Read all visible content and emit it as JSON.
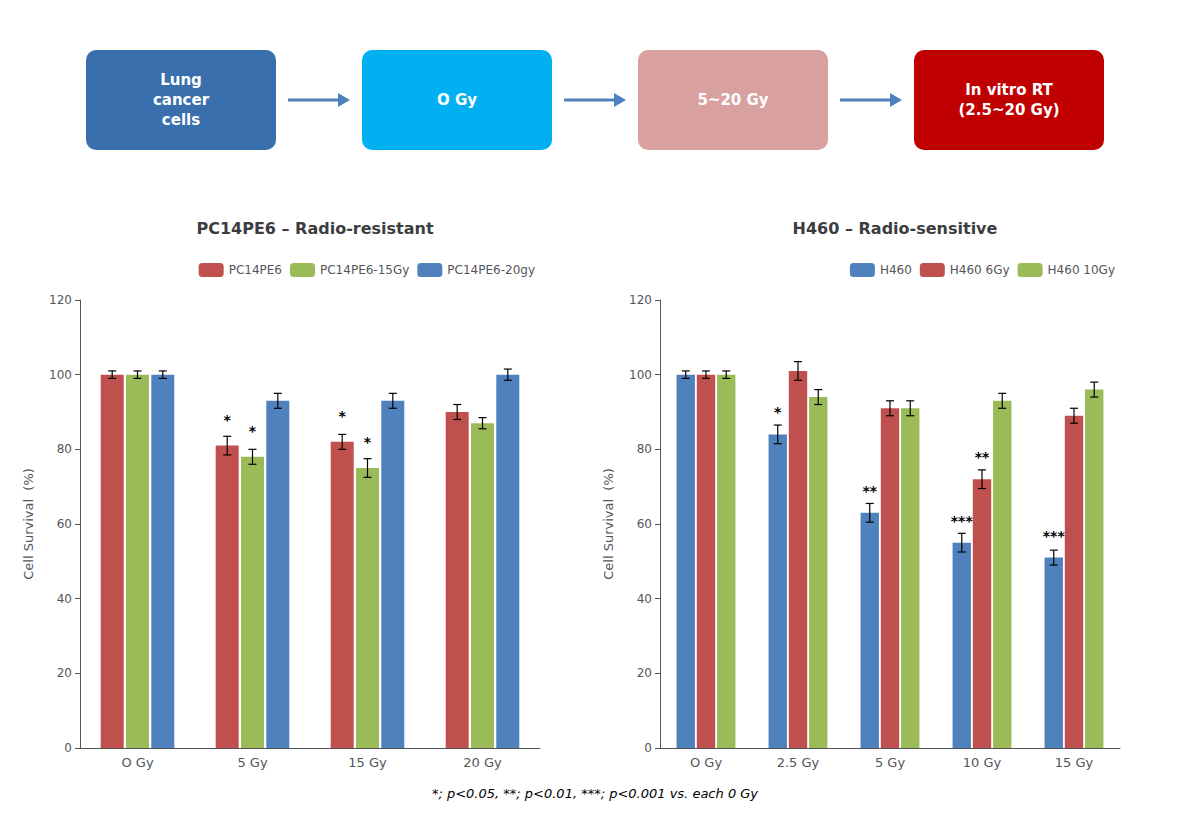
{
  "chart_data": [
    {
      "type": "diagram",
      "annotations": [
        "Lung\ncancer\ncells",
        "O Gy",
        "5~20 Gy",
        "In vitro RT\n(2.5~20 Gy)"
      ],
      "colors": [
        "#3a6fad",
        "#00b0f0",
        "#d9a0a0",
        "#c00000"
      ]
    },
    {
      "type": "bar",
      "title": "PC14PE6 – Radio-resistant",
      "categories": [
        "O Gy",
        "5 Gy",
        "15 Gy",
        "20 Gy"
      ],
      "series": [
        {
          "name": "PC14PE6",
          "color": "#c0504d",
          "values": [
            100,
            81,
            82,
            90
          ],
          "errors": [
            1.0,
            2.5,
            2.0,
            2.0
          ]
        },
        {
          "name": "PC14PE6-15Gy",
          "color": "#9bbb59",
          "values": [
            100,
            78,
            75,
            87
          ],
          "errors": [
            1.0,
            2.0,
            2.5,
            1.5
          ]
        },
        {
          "name": "PC14PE6-20gy",
          "color": "#4f81bd",
          "values": [
            100,
            93,
            93,
            100
          ],
          "errors": [
            1.0,
            2.0,
            2.0,
            1.5
          ]
        }
      ],
      "annotations": [
        {
          "text": "*",
          "category": "5 Gy",
          "series": "PC14PE6",
          "y": 86
        },
        {
          "text": "*",
          "category": "5 Gy",
          "series": "PC14PE6-15Gy",
          "y": 83
        },
        {
          "text": "*",
          "category": "15 Gy",
          "series": "PC14PE6",
          "y": 87
        },
        {
          "text": "*",
          "category": "15 Gy",
          "series": "PC14PE6-15Gy",
          "y": 80
        }
      ],
      "ylim": [
        0,
        120
      ],
      "yticks": [
        0,
        20,
        40,
        60,
        80,
        100,
        120
      ],
      "ylabel": "Cell Survival  (%)",
      "legend": "upper right",
      "grid": false
    },
    {
      "type": "bar",
      "title": "H460 – Radio-sensitive",
      "categories": [
        "O Gy",
        "2.5 Gy",
        "5 Gy",
        "10 Gy",
        "15 Gy"
      ],
      "series": [
        {
          "name": "H460",
          "color": "#4f81bd",
          "values": [
            100,
            84,
            63,
            55,
            51
          ],
          "errors": [
            1.0,
            2.5,
            2.5,
            2.5,
            2.0
          ]
        },
        {
          "name": "H460 6Gy",
          "color": "#c0504d",
          "values": [
            100,
            101,
            91,
            72,
            89
          ],
          "errors": [
            1.0,
            2.5,
            2.0,
            2.5,
            2.0
          ]
        },
        {
          "name": "H460 10Gy",
          "color": "#9bbb59",
          "values": [
            100,
            94,
            91,
            93,
            96
          ],
          "errors": [
            1.0,
            2.0,
            2.0,
            2.0,
            2.0
          ]
        }
      ],
      "annotations": [
        {
          "text": "*",
          "category": "2.5 Gy",
          "series": "H460",
          "y": 88
        },
        {
          "text": "**",
          "category": "5 Gy",
          "series": "H460",
          "y": 67
        },
        {
          "text": "***",
          "category": "10 Gy",
          "series": "H460",
          "y": 59
        },
        {
          "text": "**",
          "category": "10 Gy",
          "series": "H460 6Gy",
          "y": 76
        },
        {
          "text": "***",
          "category": "15 Gy",
          "series": "H460",
          "y": 55
        }
      ],
      "ylim": [
        0,
        120
      ],
      "yticks": [
        0,
        20,
        40,
        60,
        80,
        100,
        120
      ],
      "ylabel": "Cell Survival  (%)",
      "legend": "upper right",
      "grid": false,
      "footnote": "*; p<0.05, **; p<0.01, ***; p<0.001 vs. each 0 Gy"
    }
  ]
}
